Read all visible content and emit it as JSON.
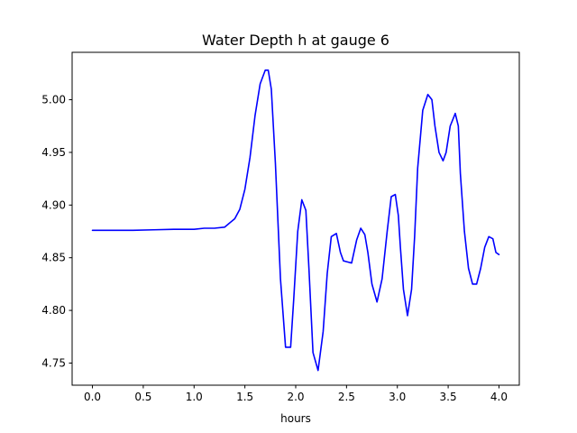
{
  "chart_data": {
    "type": "line",
    "title": "Water Depth h at gauge 6",
    "xlabel": "hours",
    "ylabel": "",
    "xlim": [
      -0.2,
      4.2
    ],
    "ylim": [
      4.729,
      5.045
    ],
    "xticks": [
      0.0,
      0.5,
      1.0,
      1.5,
      2.0,
      2.5,
      3.0,
      3.5,
      4.0
    ],
    "xtick_labels": [
      "0.0",
      "0.5",
      "1.0",
      "1.5",
      "2.0",
      "2.5",
      "3.0",
      "3.5",
      "4.0"
    ],
    "yticks": [
      4.75,
      4.8,
      4.85,
      4.9,
      4.95,
      5.0
    ],
    "ytick_labels": [
      "4.75",
      "4.80",
      "4.85",
      "4.90",
      "4.95",
      "5.00"
    ],
    "grid": false,
    "legend": "none",
    "series": [
      {
        "color": "#0000ff",
        "x": [
          0.0,
          0.2,
          0.4,
          0.6,
          0.8,
          0.9,
          1.0,
          1.1,
          1.2,
          1.3,
          1.4,
          1.45,
          1.5,
          1.55,
          1.6,
          1.65,
          1.7,
          1.73,
          1.76,
          1.8,
          1.85,
          1.9,
          1.95,
          1.98,
          2.02,
          2.06,
          2.1,
          2.13,
          2.17,
          2.22,
          2.27,
          2.31,
          2.35,
          2.4,
          2.44,
          2.47,
          2.51,
          2.55,
          2.6,
          2.64,
          2.68,
          2.71,
          2.75,
          2.8,
          2.85,
          2.9,
          2.94,
          2.98,
          3.01,
          3.03,
          3.06,
          3.1,
          3.14,
          3.17,
          3.2,
          3.25,
          3.3,
          3.34,
          3.37,
          3.41,
          3.45,
          3.48,
          3.52,
          3.57,
          3.6,
          3.62,
          3.66,
          3.7,
          3.74,
          3.78,
          3.82,
          3.86,
          3.9,
          3.94,
          3.97,
          4.0
        ],
        "y": [
          4.876,
          4.876,
          4.876,
          4.8765,
          4.877,
          4.877,
          4.877,
          4.878,
          4.878,
          4.879,
          4.887,
          4.896,
          4.915,
          4.945,
          4.985,
          5.015,
          5.028,
          5.028,
          5.01,
          4.94,
          4.83,
          4.765,
          4.765,
          4.81,
          4.875,
          4.905,
          4.895,
          4.84,
          4.76,
          4.743,
          4.78,
          4.835,
          4.87,
          4.873,
          4.855,
          4.847,
          4.846,
          4.845,
          4.867,
          4.878,
          4.872,
          4.855,
          4.825,
          4.808,
          4.83,
          4.875,
          4.908,
          4.91,
          4.89,
          4.86,
          4.82,
          4.795,
          4.82,
          4.87,
          4.935,
          4.99,
          5.005,
          5.0,
          4.975,
          4.95,
          4.942,
          4.95,
          4.975,
          4.987,
          4.975,
          4.93,
          4.875,
          4.84,
          4.825,
          4.825,
          4.84,
          4.86,
          4.87,
          4.868,
          4.855,
          4.853
        ]
      }
    ]
  }
}
